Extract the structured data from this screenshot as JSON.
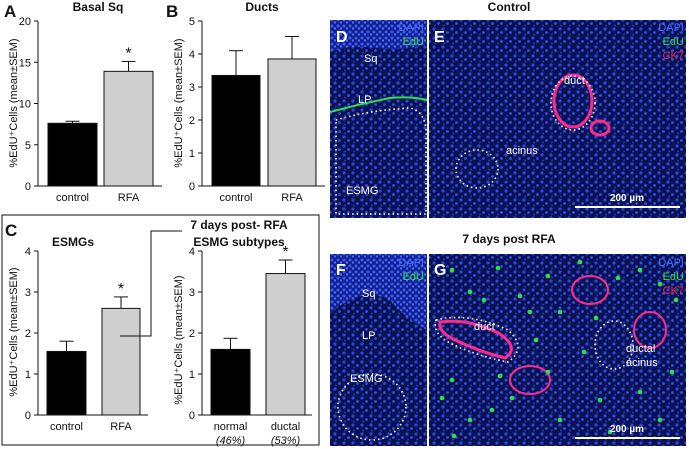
{
  "chart_data": [
    {
      "panel": "A",
      "type": "bar",
      "title": "Basal Sq",
      "ylabel": "%EdU⁺Cells (mean±SEM)",
      "categories": [
        "control",
        "RFA"
      ],
      "values": [
        7.6,
        13.9
      ],
      "errors": [
        0.25,
        1.2
      ],
      "ylim": [
        0,
        20
      ],
      "yticks": [
        0,
        5,
        10,
        15,
        20
      ],
      "colors": [
        "#000000",
        "#cfcfcf"
      ],
      "significance": [
        "",
        "*"
      ]
    },
    {
      "panel": "B",
      "type": "bar",
      "title": "Ducts",
      "ylabel": "%EdU⁺Cells (mean±SEM)",
      "categories": [
        "control",
        "RFA"
      ],
      "values": [
        3.35,
        3.85
      ],
      "errors": [
        0.75,
        0.68
      ],
      "ylim": [
        0,
        5
      ],
      "yticks": [
        0,
        1,
        2,
        3,
        4,
        5
      ],
      "colors": [
        "#000000",
        "#cfcfcf"
      ],
      "significance": [
        "",
        ""
      ]
    },
    {
      "panel": "C",
      "type": "bar",
      "title": "ESMGs",
      "ylabel": "%EdU⁺Cells (mean±SEM)",
      "categories": [
        "control",
        "RFA"
      ],
      "values": [
        1.55,
        2.6
      ],
      "errors": [
        0.25,
        0.28
      ],
      "ylim": [
        0,
        4
      ],
      "yticks": [
        0,
        1,
        2,
        3,
        4
      ],
      "colors": [
        "#000000",
        "#cfcfcf"
      ],
      "significance": [
        "",
        "*"
      ]
    },
    {
      "panel": "C-subtypes",
      "type": "bar",
      "title": "7 days post- RFA ESMG subtypes",
      "ylabel": "%EdU⁺Cells (mean±SEM)",
      "categories": [
        "normal",
        "ductal"
      ],
      "category_notes": [
        "(46%)",
        "(53%)"
      ],
      "values": [
        1.6,
        3.45
      ],
      "errors": [
        0.27,
        0.33
      ],
      "ylim": [
        0,
        4
      ],
      "yticks": [
        0,
        1,
        2,
        3,
        4
      ],
      "colors": [
        "#000000",
        "#cfcfcf"
      ],
      "significance": [
        "",
        "*"
      ]
    }
  ],
  "subtype_title": [
    "7 days post- RFA",
    "ESMG subtypes"
  ],
  "micrographs": {
    "control_title": "Control",
    "rfa_title": "7 days post RFA",
    "D": {
      "letter": "D",
      "legend": [
        "DAPI",
        "EdU"
      ],
      "labels": [
        "Sq",
        "LP",
        "ESMG"
      ]
    },
    "E": {
      "letter": "E",
      "legend": [
        "DAPI",
        "EdU",
        "CK7"
      ],
      "labels": [
        "duct",
        "acinus"
      ],
      "scale": "200 µm"
    },
    "F": {
      "letter": "F",
      "legend": [
        "DAPI",
        "EdU"
      ],
      "labels": [
        "Sq",
        "LP",
        "ESMG"
      ]
    },
    "G": {
      "letter": "G",
      "legend": [
        "DAPI",
        "EdU",
        "CK7"
      ],
      "labels": [
        "duct",
        "ductal",
        "acinus"
      ],
      "scale": "200 µm"
    }
  },
  "colors": {
    "dapi": "#4a6cff",
    "edu": "#2fe04a",
    "ck7": "#ff2a3a",
    "tissue_dark": "#0a0f3a"
  }
}
